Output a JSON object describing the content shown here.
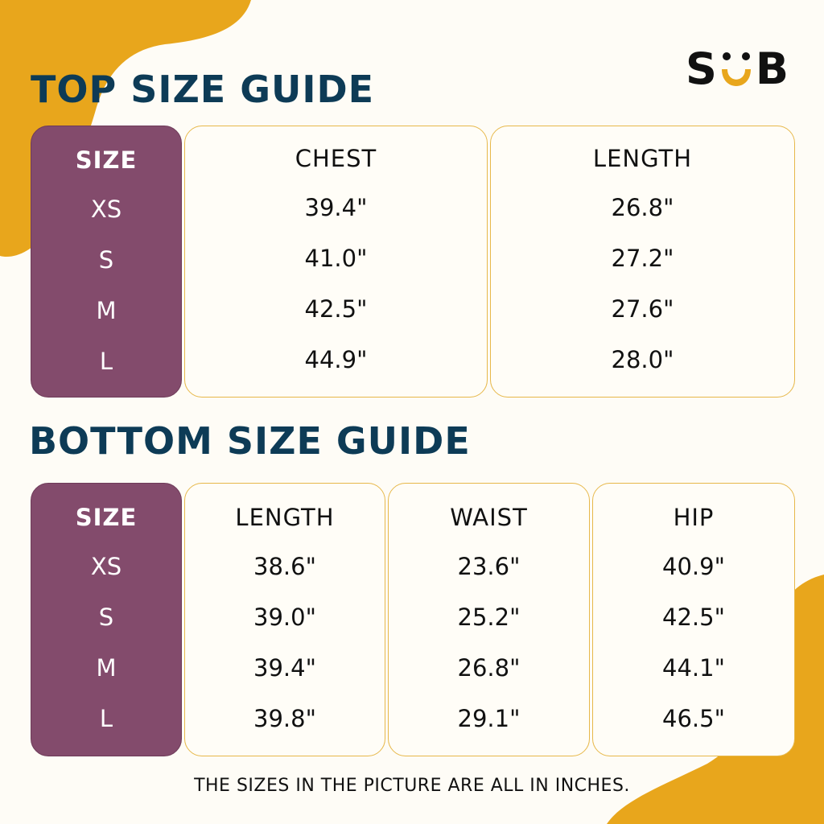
{
  "brand": {
    "logo_left": "S",
    "logo_right": "B",
    "colors": {
      "accent": "#e8a61c",
      "title": "#0d3b56",
      "size_column": "#834b6c",
      "card_border": "#e7b84a"
    }
  },
  "top_guide": {
    "title": "TOP SIZE GUIDE",
    "size_header": "SIZE",
    "sizes": [
      "XS",
      "S",
      "M",
      "L"
    ],
    "columns": [
      {
        "header": "CHEST",
        "values": [
          "39.4\"",
          "41.0\"",
          "42.5\"",
          "44.9\""
        ]
      },
      {
        "header": "LENGTH",
        "values": [
          "26.8\"",
          "27.2\"",
          "27.6\"",
          "28.0\""
        ]
      }
    ]
  },
  "bottom_guide": {
    "title": "BOTTOM SIZE GUIDE",
    "size_header": "SIZE",
    "sizes": [
      "XS",
      "S",
      "M",
      "L"
    ],
    "columns": [
      {
        "header": "LENGTH",
        "values": [
          "38.6\"",
          "39.0\"",
          "39.4\"",
          "39.8\""
        ]
      },
      {
        "header": "WAIST",
        "values": [
          "23.6\"",
          "25.2\"",
          "26.8\"",
          "29.1\""
        ]
      },
      {
        "header": "HIP",
        "values": [
          "40.9\"",
          "42.5\"",
          "44.1\"",
          "46.5\""
        ]
      }
    ]
  },
  "footnote": "THE SIZES IN THE PICTURE ARE ALL IN INCHES."
}
